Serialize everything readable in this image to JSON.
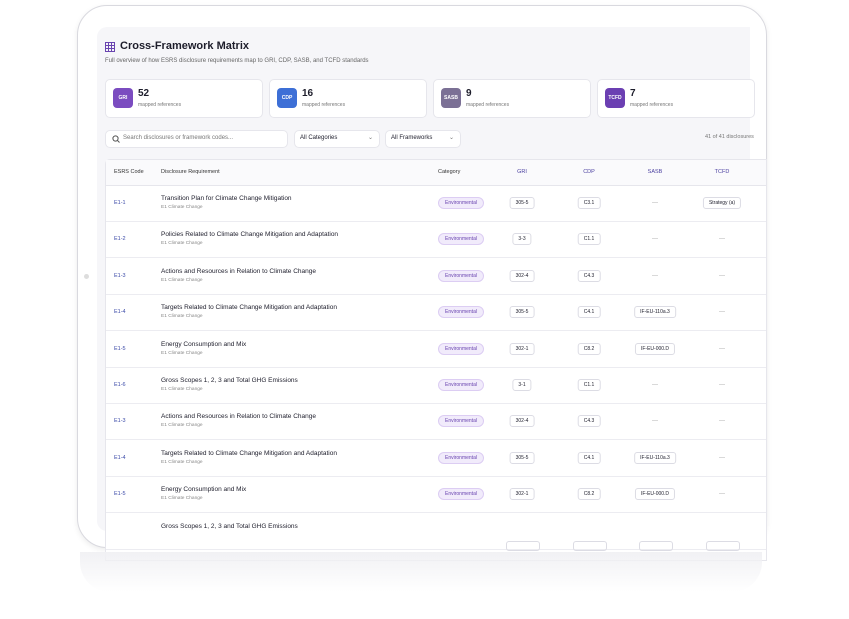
{
  "header": {
    "title": "Cross-Framework Matrix",
    "subtitle": "Full overview of how ESRS disclosure requirements map to GRI, CDP, SASB, and TCFD standards"
  },
  "stats": [
    {
      "badge": "GRI",
      "count": "52",
      "label": "mapped references"
    },
    {
      "badge": "CDP",
      "count": "16",
      "label": "mapped references"
    },
    {
      "badge": "SASB",
      "count": "9",
      "label": "mapped references"
    },
    {
      "badge": "TCFD",
      "count": "7",
      "label": "mapped references"
    }
  ],
  "toolbar": {
    "search": "Search disclosures or framework codes...",
    "filters": [
      "All Categories",
      "All Frameworks"
    ],
    "count": "41 of 41 disclosures"
  },
  "table": {
    "columns": [
      "ESRS Code",
      "Disclosure Requirement",
      "Category",
      "GRI",
      "CDP",
      "SASB",
      "TCFD"
    ],
    "rows": [
      {
        "code": "E1-1",
        "requirement": "Transition Plan for Climate Change Mitigation",
        "topic": "E1 Climate Change",
        "category": "Environmental",
        "gri": "305-5",
        "cdp": "C3.1",
        "sasb": "—",
        "tcfd": "Strategy (a)"
      },
      {
        "code": "E1-2",
        "requirement": "Policies Related to Climate Change Mitigation and Adaptation",
        "topic": "E1 Climate Change",
        "category": "Environmental",
        "gri": "3-3",
        "cdp": "C1.1",
        "sasb": "—",
        "tcfd": "—"
      },
      {
        "code": "E1-3",
        "requirement": "Actions and Resources in Relation to Climate Change",
        "topic": "E1 Climate Change",
        "category": "Environmental",
        "gri": "302-4",
        "cdp": "C4.3",
        "sasb": "—",
        "tcfd": "—"
      },
      {
        "code": "E1-4",
        "requirement": "Targets Related to Climate Change Mitigation and Adaptation",
        "topic": "E1 Climate Change",
        "category": "Environmental",
        "gri": "305-5",
        "cdp": "C4.1",
        "sasb": "IF-EU-110a.3",
        "tcfd": "—"
      },
      {
        "code": "E1-5",
        "requirement": "Energy Consumption and Mix",
        "topic": "E1 Climate Change",
        "category": "Environmental",
        "gri": "302-1",
        "cdp": "C8.2",
        "sasb": "IF-EU-000.D",
        "tcfd": "—"
      },
      {
        "code": "E1-6",
        "requirement": "Gross Scopes 1, 2, 3 and Total GHG Emissions",
        "topic": "E1 Climate Change",
        "category": "Environmental",
        "gri": "3-1",
        "cdp": "C1.1",
        "sasb": "—",
        "tcfd": "—"
      },
      {
        "code": "E1-3",
        "requirement": "Actions and Resources in Relation to Climate Change",
        "topic": "E1 Climate Change",
        "category": "Environmental",
        "gri": "302-4",
        "cdp": "C4.3",
        "sasb": "—",
        "tcfd": "—"
      },
      {
        "code": "E1-4",
        "requirement": "Targets Related to Climate Change Mitigation and Adaptation",
        "topic": "E1 Climate Change",
        "category": "Environmental",
        "gri": "305-5",
        "cdp": "C4.1",
        "sasb": "IF-EU-110a.3",
        "tcfd": "—"
      },
      {
        "code": "E1-5",
        "requirement": "Energy Consumption and Mix",
        "topic": "E1 Climate Change",
        "category": "Environmental",
        "gri": "302-1",
        "cdp": "C8.2",
        "sasb": "IF-EU-000.D",
        "tcfd": "—"
      },
      {
        "requirement": "Gross Scopes 1, 2, 3 and Total GHG Emissions"
      }
    ]
  }
}
